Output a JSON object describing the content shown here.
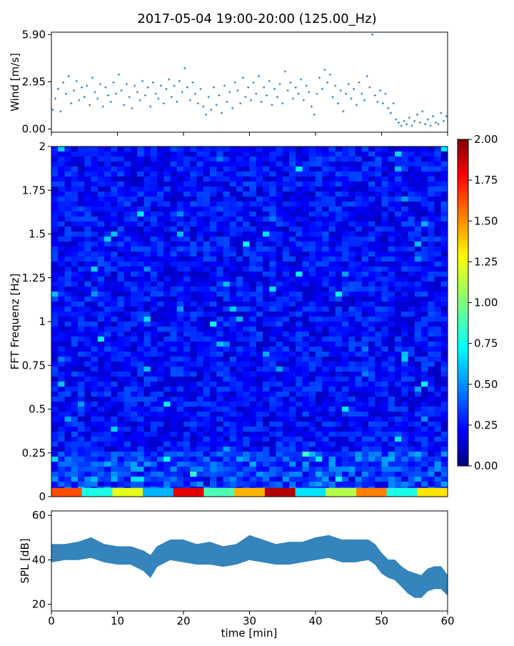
{
  "figure": {
    "title": "2017-05-04 19:00-20:00 (125.00_Hz)"
  },
  "chart_data": [
    {
      "type": "scatter",
      "name": "wind",
      "ylabel": "Wind [m/s]",
      "xlim": [
        0,
        60
      ],
      "ylim": [
        -0.2,
        6.05
      ],
      "yticks": [
        "0.00",
        "2.95",
        "5.90"
      ],
      "ytick_values": [
        0.0,
        2.95,
        5.9
      ],
      "color": "#1f77b4",
      "points": [
        [
          0.2,
          1.2
        ],
        [
          0.6,
          1.9
        ],
        [
          1.0,
          2.5
        ],
        [
          1.4,
          1.1
        ],
        [
          1.8,
          2.9
        ],
        [
          2.2,
          2.2
        ],
        [
          2.6,
          3.3
        ],
        [
          3.0,
          1.6
        ],
        [
          3.4,
          2.4
        ],
        [
          3.8,
          3.0
        ],
        [
          4.2,
          1.8
        ],
        [
          4.6,
          2.6
        ],
        [
          5.0,
          2.0
        ],
        [
          5.4,
          2.7
        ],
        [
          5.8,
          1.5
        ],
        [
          6.2,
          3.2
        ],
        [
          6.6,
          2.3
        ],
        [
          7.0,
          1.9
        ],
        [
          7.4,
          2.8
        ],
        [
          7.8,
          1.4
        ],
        [
          8.2,
          2.6
        ],
        [
          8.6,
          2.1
        ],
        [
          9.0,
          1.7
        ],
        [
          9.4,
          2.9
        ],
        [
          9.8,
          2.2
        ],
        [
          10.2,
          3.4
        ],
        [
          10.6,
          2.4
        ],
        [
          11.0,
          1.5
        ],
        [
          11.4,
          2.8
        ],
        [
          11.8,
          2.0
        ],
        [
          12.2,
          1.3
        ],
        [
          12.6,
          2.7
        ],
        [
          13.0,
          2.3
        ],
        [
          13.4,
          1.8
        ],
        [
          13.8,
          3.0
        ],
        [
          14.2,
          2.1
        ],
        [
          14.6,
          2.6
        ],
        [
          15.0,
          1.4
        ],
        [
          15.4,
          2.9
        ],
        [
          15.8,
          2.2
        ],
        [
          16.2,
          1.9
        ],
        [
          16.6,
          2.7
        ],
        [
          17.0,
          1.6
        ],
        [
          17.4,
          2.5
        ],
        [
          17.8,
          3.1
        ],
        [
          18.2,
          2.0
        ],
        [
          18.6,
          2.7
        ],
        [
          19.0,
          1.7
        ],
        [
          19.4,
          3.0
        ],
        [
          19.8,
          2.3
        ],
        [
          20.2,
          3.8
        ],
        [
          20.6,
          2.6
        ],
        [
          21.0,
          1.8
        ],
        [
          21.4,
          2.9
        ],
        [
          21.8,
          2.2
        ],
        [
          22.2,
          1.6
        ],
        [
          22.6,
          2.5
        ],
        [
          23.0,
          1.4
        ],
        [
          23.4,
          0.9
        ],
        [
          23.8,
          2.0
        ],
        [
          24.2,
          1.2
        ],
        [
          24.6,
          2.6
        ],
        [
          25.0,
          1.5
        ],
        [
          25.4,
          2.1
        ],
        [
          25.8,
          1.0
        ],
        [
          26.2,
          2.7
        ],
        [
          26.6,
          1.7
        ],
        [
          27.0,
          2.3
        ],
        [
          27.4,
          1.3
        ],
        [
          27.8,
          2.9
        ],
        [
          28.2,
          2.4
        ],
        [
          28.6,
          1.6
        ],
        [
          29.0,
          3.2
        ],
        [
          29.4,
          2.0
        ],
        [
          29.8,
          2.6
        ],
        [
          30.2,
          1.8
        ],
        [
          30.6,
          2.9
        ],
        [
          31.0,
          2.2
        ],
        [
          31.4,
          3.3
        ],
        [
          31.8,
          1.7
        ],
        [
          32.2,
          2.6
        ],
        [
          32.6,
          2.1
        ],
        [
          33.0,
          3.0
        ],
        [
          33.4,
          1.5
        ],
        [
          33.8,
          2.5
        ],
        [
          34.2,
          2.0
        ],
        [
          34.6,
          2.8
        ],
        [
          35.0,
          1.6
        ],
        [
          35.4,
          3.6
        ],
        [
          35.8,
          2.4
        ],
        [
          36.2,
          2.9
        ],
        [
          36.6,
          1.9
        ],
        [
          37.0,
          2.6
        ],
        [
          37.4,
          2.2
        ],
        [
          37.8,
          3.1
        ],
        [
          38.2,
          1.8
        ],
        [
          38.6,
          2.7
        ],
        [
          39.0,
          2.3
        ],
        [
          39.4,
          1.4
        ],
        [
          39.8,
          0.9
        ],
        [
          40.2,
          2.2
        ],
        [
          40.6,
          3.2
        ],
        [
          41.0,
          2.5
        ],
        [
          41.4,
          3.7
        ],
        [
          41.8,
          2.9
        ],
        [
          42.2,
          3.4
        ],
        [
          42.6,
          2.0
        ],
        [
          43.0,
          2.7
        ],
        [
          43.4,
          1.6
        ],
        [
          43.8,
          2.4
        ],
        [
          44.2,
          1.1
        ],
        [
          44.6,
          2.2
        ],
        [
          45.0,
          2.8
        ],
        [
          45.4,
          1.9
        ],
        [
          45.8,
          2.5
        ],
        [
          46.2,
          1.5
        ],
        [
          46.6,
          2.9
        ],
        [
          47.0,
          2.2
        ],
        [
          47.4,
          1.8
        ],
        [
          47.8,
          3.3
        ],
        [
          48.2,
          2.6
        ],
        [
          48.6,
          5.9
        ],
        [
          49.0,
          2.1
        ],
        [
          49.4,
          1.7
        ],
        [
          49.8,
          2.4
        ],
        [
          50.2,
          1.6
        ],
        [
          50.6,
          2.2
        ],
        [
          51.0,
          1.3
        ],
        [
          51.4,
          1.0
        ],
        [
          51.8,
          1.6
        ],
        [
          52.2,
          0.6
        ],
        [
          52.6,
          0.4
        ],
        [
          53.0,
          0.2
        ],
        [
          53.4,
          0.5
        ],
        [
          53.8,
          0.3
        ],
        [
          54.2,
          0.7
        ],
        [
          54.6,
          0.2
        ],
        [
          55.0,
          0.5
        ],
        [
          55.4,
          0.9
        ],
        [
          55.8,
          0.4
        ],
        [
          56.2,
          1.1
        ],
        [
          56.6,
          0.3
        ],
        [
          57.0,
          0.6
        ],
        [
          57.4,
          0.2
        ],
        [
          57.8,
          0.8
        ],
        [
          58.2,
          0.4
        ],
        [
          58.6,
          0.3
        ],
        [
          59.0,
          1.0
        ],
        [
          59.4,
          0.5
        ],
        [
          59.8,
          0.8
        ]
      ]
    },
    {
      "type": "heatmap",
      "name": "spectrogram",
      "ylabel": "FFT Frequenz [Hz]",
      "xlim": [
        0,
        60
      ],
      "ylim": [
        0,
        2
      ],
      "yticks": [
        "0",
        "0.25",
        "0.5",
        "0.75",
        "1",
        "1.25",
        "1.5",
        "1.75",
        "2"
      ],
      "ytick_values": [
        0,
        0.25,
        0.5,
        0.75,
        1,
        1.25,
        1.5,
        1.75,
        2
      ],
      "colormap": "jet",
      "clim": [
        0,
        2
      ],
      "colorbar_ticks": [
        "0.00",
        "0.25",
        "0.50",
        "0.75",
        "1.00",
        "1.25",
        "1.50",
        "1.75",
        "2.00"
      ],
      "colorbar_tick_values": [
        0,
        0.25,
        0.5,
        0.75,
        1,
        1.25,
        1.5,
        1.75,
        2
      ],
      "typical_value": 0.25,
      "low_freq_band": {
        "freq_max": 0.05,
        "values": [
          1.6,
          0.8,
          1.2,
          0.6,
          1.8,
          0.9,
          1.4,
          1.9,
          0.7,
          1.1,
          1.5,
          0.8,
          1.3
        ]
      }
    },
    {
      "type": "area",
      "name": "spl",
      "ylabel": "SPL [dB]",
      "xlabel": "time [min]",
      "xlim": [
        0,
        60
      ],
      "ylim": [
        17,
        62
      ],
      "yticks": [
        "20",
        "40",
        "60"
      ],
      "ytick_values": [
        20,
        40,
        60
      ],
      "xticks": [
        "0",
        "10",
        "20",
        "30",
        "40",
        "50",
        "60"
      ],
      "xtick_values": [
        0,
        10,
        20,
        30,
        40,
        50,
        60
      ],
      "color": "#1f77b4",
      "series": {
        "x": [
          0,
          2,
          4,
          6,
          8,
          10,
          12,
          14,
          15,
          16,
          18,
          20,
          22,
          24,
          26,
          28,
          30,
          32,
          34,
          36,
          38,
          40,
          42,
          44,
          46,
          48,
          49,
          50,
          51,
          52,
          53,
          54,
          55,
          56,
          57,
          58,
          59,
          60
        ],
        "upper": [
          47,
          47,
          48,
          50,
          47,
          46,
          46,
          44,
          42,
          46,
          49,
          49,
          47,
          48,
          46,
          47,
          51,
          49,
          47,
          48,
          48,
          50,
          51,
          49,
          49,
          49,
          47,
          43,
          40,
          40,
          37,
          35,
          34,
          33,
          36,
          37,
          37,
          33
        ],
        "lower": [
          39,
          40,
          40,
          41,
          39,
          38,
          38,
          35,
          32,
          37,
          40,
          39,
          38,
          38,
          37,
          38,
          40,
          39,
          38,
          38,
          39,
          40,
          41,
          39,
          39,
          40,
          38,
          34,
          32,
          31,
          28,
          25,
          23,
          23,
          26,
          27,
          27,
          24
        ]
      }
    }
  ]
}
